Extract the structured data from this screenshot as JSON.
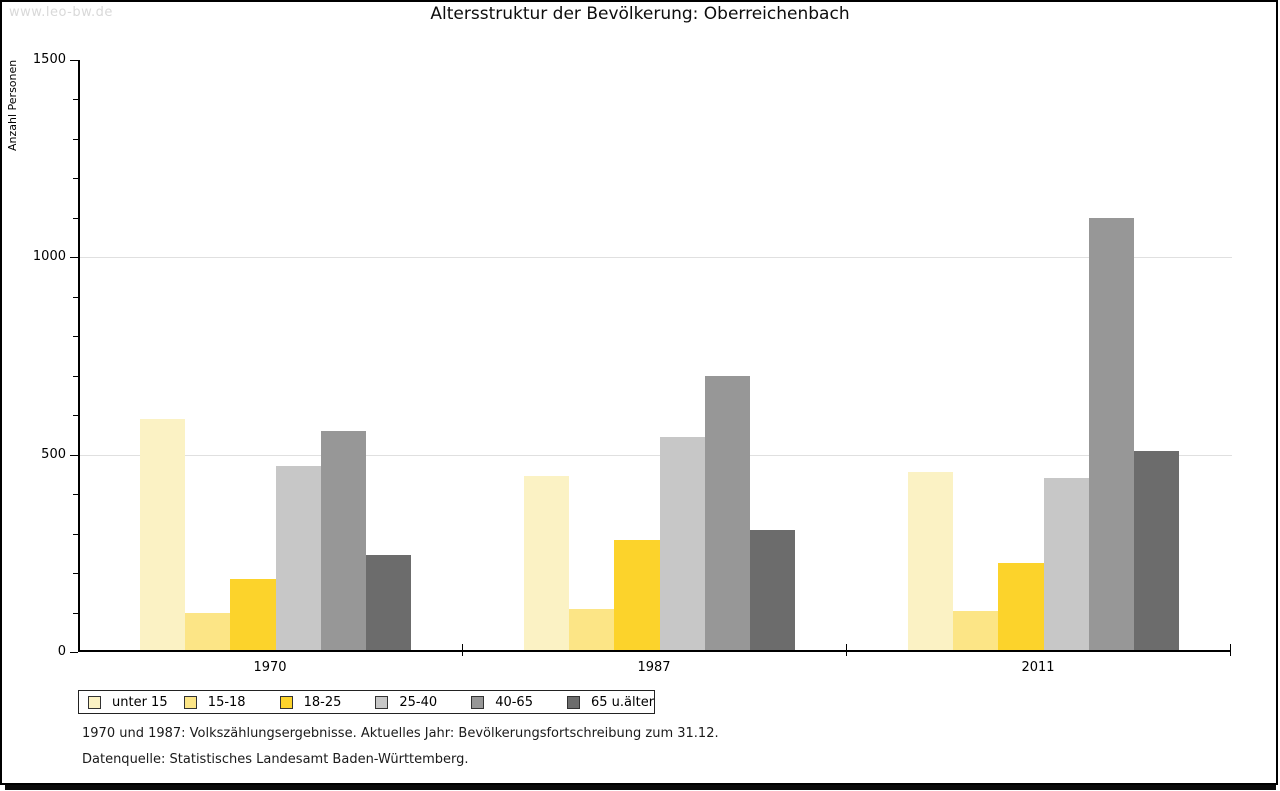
{
  "watermark": "www.leo-bw.de",
  "title": "Altersstruktur der Bevölkerung: Oberreichenbach",
  "chart_data": {
    "type": "bar",
    "title": "Altersstruktur der Bevölkerung: Oberreichenbach",
    "xlabel": "",
    "ylabel": "Anzahl Personen",
    "ylim": [
      0,
      1500
    ],
    "ytick_major": [
      0,
      500,
      1000,
      1500
    ],
    "ytick_minor_step": 100,
    "gridlines_at": [
      500,
      1000
    ],
    "grid": "horizontal-major-only",
    "legend_position": "bottom",
    "categories": [
      "1970",
      "1987",
      "2011"
    ],
    "series": [
      {
        "name": "unter 15",
        "color": "#fbf2c4",
        "values": [
          585,
          440,
          450
        ]
      },
      {
        "name": "15-18",
        "color": "#fce586",
        "values": [
          95,
          105,
          100
        ]
      },
      {
        "name": "18-25",
        "color": "#fcd32b",
        "values": [
          180,
          280,
          220
        ]
      },
      {
        "name": "25-40",
        "color": "#c7c7c7",
        "values": [
          465,
          540,
          435
        ]
      },
      {
        "name": "40-65",
        "color": "#979797",
        "values": [
          555,
          695,
          1095
        ]
      },
      {
        "name": "65 u.älter",
        "color": "#6c6c6c",
        "values": [
          240,
          305,
          505
        ]
      }
    ]
  },
  "footnotes": [
    "1970 und 1987: Volkszählungsergebnisse. Aktuelles Jahr: Bevölkerungsfortschreibung zum 31.12.",
    "Datenquelle: Statistisches Landesamt Baden-Württemberg."
  ]
}
